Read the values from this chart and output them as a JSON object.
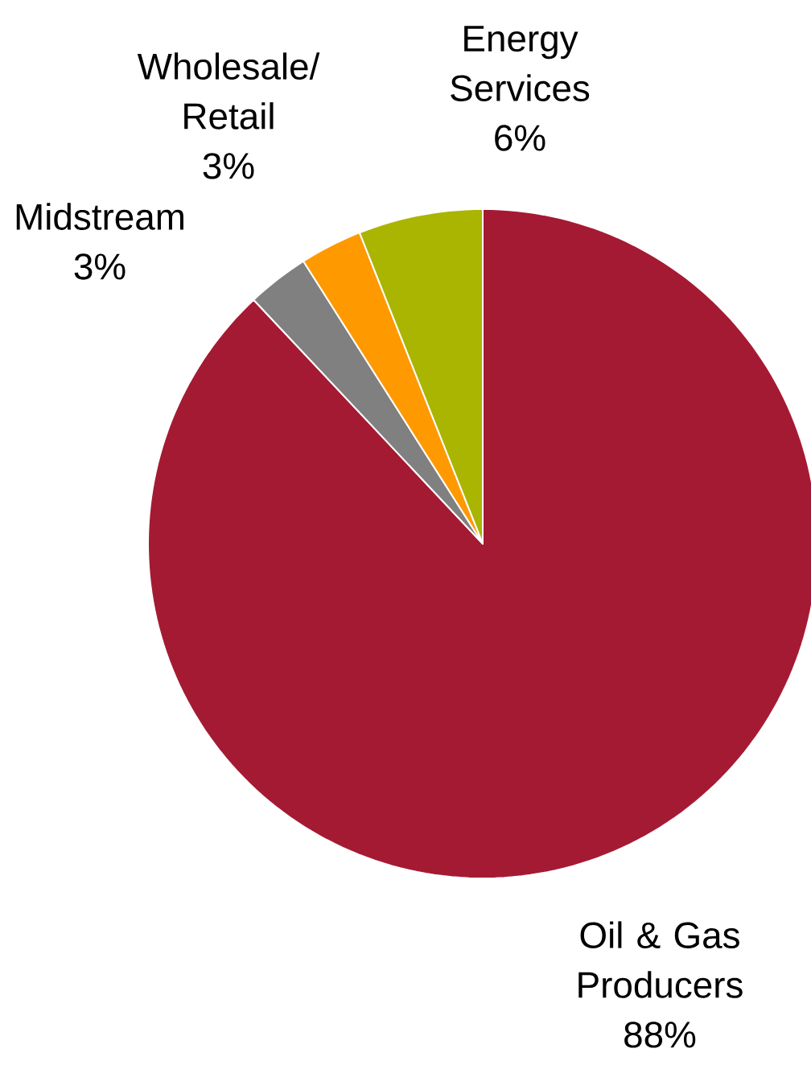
{
  "chart_data": {
    "type": "pie",
    "categories": [
      "Oil & Gas Producers",
      "Midstream",
      "Wholesale/ Retail",
      "Energy Services"
    ],
    "values": [
      88,
      3,
      3,
      6
    ],
    "colors": [
      "#a51a33",
      "#808080",
      "#ff9900",
      "#a9b500"
    ],
    "value_labels": [
      "88%",
      "3%",
      "3%",
      "6%"
    ]
  }
}
